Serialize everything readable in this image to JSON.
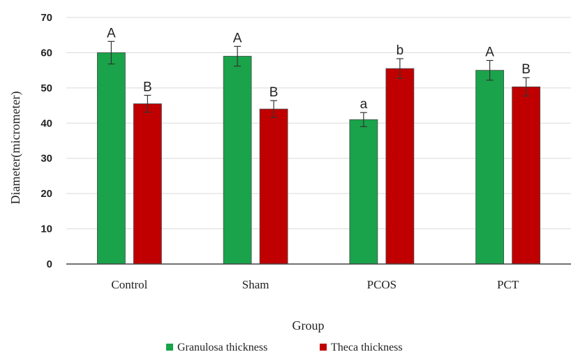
{
  "chart_data": {
    "type": "bar",
    "categories": [
      "Control",
      "Sham",
      "PCOS",
      "PCT"
    ],
    "series": [
      {
        "name": "Granulosa thickness",
        "color": "#1aa34a",
        "values": [
          60,
          59,
          41,
          55
        ],
        "errors": [
          3.2,
          2.8,
          2.0,
          2.8
        ],
        "labels": [
          "A",
          "A",
          "a",
          "A"
        ]
      },
      {
        "name": "Theca thickness",
        "color": "#c00000",
        "values": [
          45.5,
          44,
          55.5,
          50.3
        ],
        "errors": [
          2.4,
          2.4,
          2.8,
          2.6
        ],
        "labels": [
          "B",
          "B",
          "b",
          "B"
        ]
      }
    ],
    "xlabel": "Group",
    "ylabel": "Diameter(micrometer)",
    "ylim": [
      0,
      70
    ],
    "yticks": [
      0,
      10,
      20,
      30,
      40,
      50,
      60,
      70
    ],
    "grid": true,
    "legend_position": "bottom"
  }
}
